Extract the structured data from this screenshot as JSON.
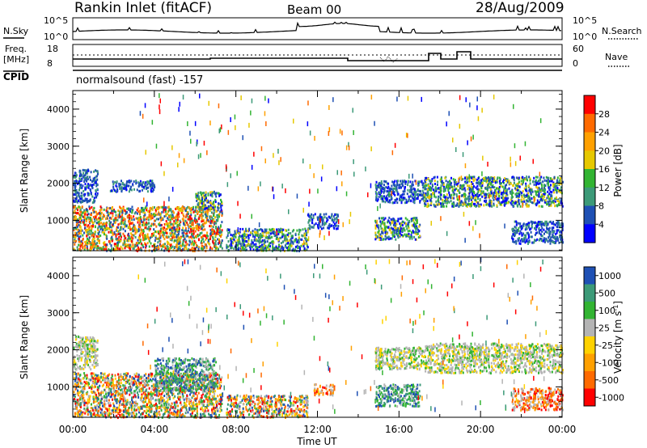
{
  "header": {
    "station": "Rankin Inlet (fitACF)",
    "beam": "Beam 00",
    "date": "28/Aug/2009"
  },
  "status_panels": {
    "nsky_label": "N.Sky",
    "nsky_ticks": [
      "10^5",
      "10^0"
    ],
    "nsearch_label": "N.Search",
    "nsearch_ticks": [
      "10^5",
      "10^0"
    ],
    "freq_label": "Freq.",
    "freq_unit": "[MHz]",
    "freq_ticks": [
      "18",
      "8"
    ],
    "nave_label": "Nave",
    "nave_ticks": [
      "60",
      "0"
    ],
    "cpid_label": "CPID",
    "cpid_text": "normalsound (fast) -157"
  },
  "x_axis": {
    "label": "Time UT",
    "ticks": [
      "00:00",
      "04:00",
      "08:00",
      "12:00",
      "16:00",
      "20:00",
      "00:00"
    ]
  },
  "chart_data": [
    {
      "type": "heatmap",
      "name": "power",
      "ylabel": "Slant Range [km]",
      "yticks": [
        "4000",
        "3000",
        "2000",
        "1000"
      ],
      "ylim": [
        180,
        4500
      ],
      "xlim_hours": [
        0,
        24
      ],
      "colorbar": {
        "label": "Power [dB]",
        "ticks": [
          "28",
          "24",
          "20",
          "16",
          "12",
          "8",
          "4"
        ],
        "colors": [
          "#ff0000",
          "#ff6a00",
          "#ffa000",
          "#e6c800",
          "#32b432",
          "#3c9a78",
          "#1e50b4",
          "#0000ff"
        ]
      },
      "regions": [
        {
          "t0": 0.0,
          "t1": 7.3,
          "r0": 200,
          "r1": 1400,
          "level": "high"
        },
        {
          "t0": 0.0,
          "t1": 1.2,
          "r0": 1500,
          "r1": 2400,
          "level": "low"
        },
        {
          "t0": 1.8,
          "t1": 4.0,
          "r0": 1800,
          "r1": 2100,
          "level": "low"
        },
        {
          "t0": 6.0,
          "t1": 7.3,
          "r0": 1300,
          "r1": 1800,
          "level": "mid"
        },
        {
          "t0": 7.5,
          "t1": 11.5,
          "r0": 200,
          "r1": 800,
          "level": "mid"
        },
        {
          "t0": 11.5,
          "t1": 13.0,
          "r0": 800,
          "r1": 1200,
          "level": "low"
        },
        {
          "t0": 14.8,
          "t1": 17.2,
          "r0": 1500,
          "r1": 2100,
          "level": "low"
        },
        {
          "t0": 14.8,
          "t1": 17.0,
          "r0": 500,
          "r1": 1100,
          "level": "mid"
        },
        {
          "t0": 17.2,
          "t1": 24.0,
          "r0": 1400,
          "r1": 2200,
          "level": "mid"
        },
        {
          "t0": 21.5,
          "t1": 24.0,
          "r0": 400,
          "r1": 1000,
          "level": "low"
        }
      ]
    },
    {
      "type": "heatmap",
      "name": "velocity",
      "ylabel": "Slant Range [km]",
      "yticks": [
        "4000",
        "3000",
        "2000",
        "1000"
      ],
      "ylim": [
        180,
        4500
      ],
      "xlim_hours": [
        0,
        24
      ],
      "colorbar": {
        "label": "Velocity [m s",
        "label_superscript": "-1",
        "label_end": "]",
        "ticks": [
          "1000",
          "500",
          "100",
          "25",
          "-25",
          "-100",
          "-500",
          "-1000"
        ],
        "colors": [
          "#1e50b4",
          "#3c9a78",
          "#32b432",
          "#b4b4b4",
          "#ffd200",
          "#ffa000",
          "#ff6a00",
          "#ff0000"
        ]
      },
      "regions": [
        {
          "t0": 0.0,
          "t1": 7.3,
          "r0": 200,
          "r1": 1400,
          "level": "mixed"
        },
        {
          "t0": 0.0,
          "t1": 1.2,
          "r0": 1500,
          "r1": 2400,
          "level": "gray"
        },
        {
          "t0": 4.0,
          "t1": 7.0,
          "r0": 900,
          "r1": 1800,
          "level": "green"
        },
        {
          "t0": 7.5,
          "t1": 11.5,
          "r0": 200,
          "r1": 800,
          "level": "mixed"
        },
        {
          "t0": 11.8,
          "t1": 12.8,
          "r0": 800,
          "r1": 1100,
          "level": "orange"
        },
        {
          "t0": 14.8,
          "t1": 17.2,
          "r0": 1500,
          "r1": 2100,
          "level": "gray"
        },
        {
          "t0": 14.8,
          "t1": 17.0,
          "r0": 500,
          "r1": 1100,
          "level": "green"
        },
        {
          "t0": 17.2,
          "t1": 24.0,
          "r0": 1400,
          "r1": 2200,
          "level": "gray"
        },
        {
          "t0": 21.5,
          "t1": 24.0,
          "r0": 400,
          "r1": 1000,
          "level": "orange"
        }
      ]
    }
  ]
}
